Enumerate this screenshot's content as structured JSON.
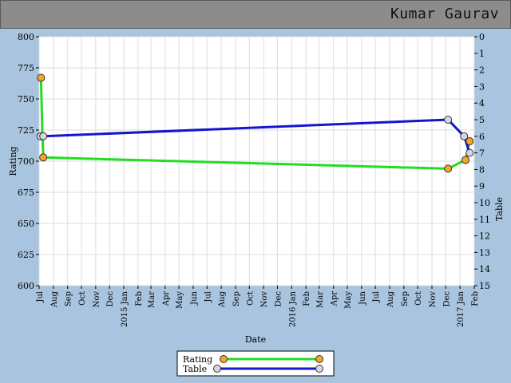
{
  "header": {
    "name": "Kumar Gaurav"
  },
  "chart_data": {
    "type": "line",
    "xlabel": "Date",
    "ylabel": "Rating",
    "y2label": "Table",
    "ylim": [
      600,
      800
    ],
    "y2lim": [
      0,
      15
    ],
    "y2_inverted": true,
    "yticks": [
      600,
      625,
      650,
      675,
      700,
      725,
      750,
      775,
      800
    ],
    "y2ticks": [
      0,
      1,
      2,
      3,
      4,
      5,
      6,
      7,
      8,
      9,
      10,
      11,
      12,
      13,
      14,
      15
    ],
    "xlim": [
      "2014-07-01",
      "2017-02-01"
    ],
    "xticks": [
      {
        "date": "2014-07-01",
        "label": "Jul"
      },
      {
        "date": "2014-08-01",
        "label": "Aug"
      },
      {
        "date": "2014-09-01",
        "label": "Sep"
      },
      {
        "date": "2014-10-01",
        "label": "Oct"
      },
      {
        "date": "2014-11-01",
        "label": "Nov"
      },
      {
        "date": "2014-12-01",
        "label": "Dec"
      },
      {
        "date": "2015-01-01",
        "label": "2015 Jan"
      },
      {
        "date": "2015-02-01",
        "label": "Feb"
      },
      {
        "date": "2015-03-01",
        "label": "Mar"
      },
      {
        "date": "2015-04-01",
        "label": "Apr"
      },
      {
        "date": "2015-05-01",
        "label": "May"
      },
      {
        "date": "2015-06-01",
        "label": "Jun"
      },
      {
        "date": "2015-07-01",
        "label": "Jul"
      },
      {
        "date": "2015-08-01",
        "label": "Aug"
      },
      {
        "date": "2015-09-01",
        "label": "Sep"
      },
      {
        "date": "2015-10-01",
        "label": "Oct"
      },
      {
        "date": "2015-11-01",
        "label": "Nov"
      },
      {
        "date": "2015-12-01",
        "label": "Dec"
      },
      {
        "date": "2016-01-01",
        "label": "2016 Jan"
      },
      {
        "date": "2016-02-01",
        "label": "Feb"
      },
      {
        "date": "2016-03-01",
        "label": "Mar"
      },
      {
        "date": "2016-04-01",
        "label": "Apr"
      },
      {
        "date": "2016-05-01",
        "label": "May"
      },
      {
        "date": "2016-06-01",
        "label": "Jun"
      },
      {
        "date": "2016-07-01",
        "label": "Jul"
      },
      {
        "date": "2016-08-01",
        "label": "Aug"
      },
      {
        "date": "2016-09-01",
        "label": "Sep"
      },
      {
        "date": "2016-10-01",
        "label": "Oct"
      },
      {
        "date": "2016-11-01",
        "label": "Nov"
      },
      {
        "date": "2016-12-01",
        "label": "Dec"
      },
      {
        "date": "2017-01-01",
        "label": "2017 Jan"
      },
      {
        "date": "2017-02-01",
        "label": "Feb"
      }
    ],
    "grid": true,
    "legend_position": "bottom-center",
    "series": [
      {
        "name": "Rating",
        "axis": "left",
        "line_color": "#22dd22",
        "marker_color": "#f5a623",
        "points": [
          {
            "x": "2014-07-05",
            "y": 767,
            "marker": true
          },
          {
            "x": "2014-07-08",
            "y": 725,
            "marker": false
          },
          {
            "x": "2014-07-10",
            "y": 703,
            "marker": true
          },
          {
            "x": "2016-12-06",
            "y": 694,
            "marker": true
          },
          {
            "x": "2017-01-13",
            "y": 701,
            "marker": true
          },
          {
            "x": "2017-01-22",
            "y": 716,
            "marker": true
          }
        ]
      },
      {
        "name": "Table",
        "axis": "right",
        "line_color": "#1515d0",
        "marker_color": "#d6d6e2",
        "points": [
          {
            "x": "2014-07-04",
            "y": 6.0,
            "marker": true
          },
          {
            "x": "2014-07-10",
            "y": 6.0,
            "marker": true
          },
          {
            "x": "2016-12-06",
            "y": 5.0,
            "marker": true
          },
          {
            "x": "2017-01-10",
            "y": 6.0,
            "marker": true
          },
          {
            "x": "2017-01-22",
            "y": 7.0,
            "marker": true
          }
        ]
      }
    ]
  }
}
